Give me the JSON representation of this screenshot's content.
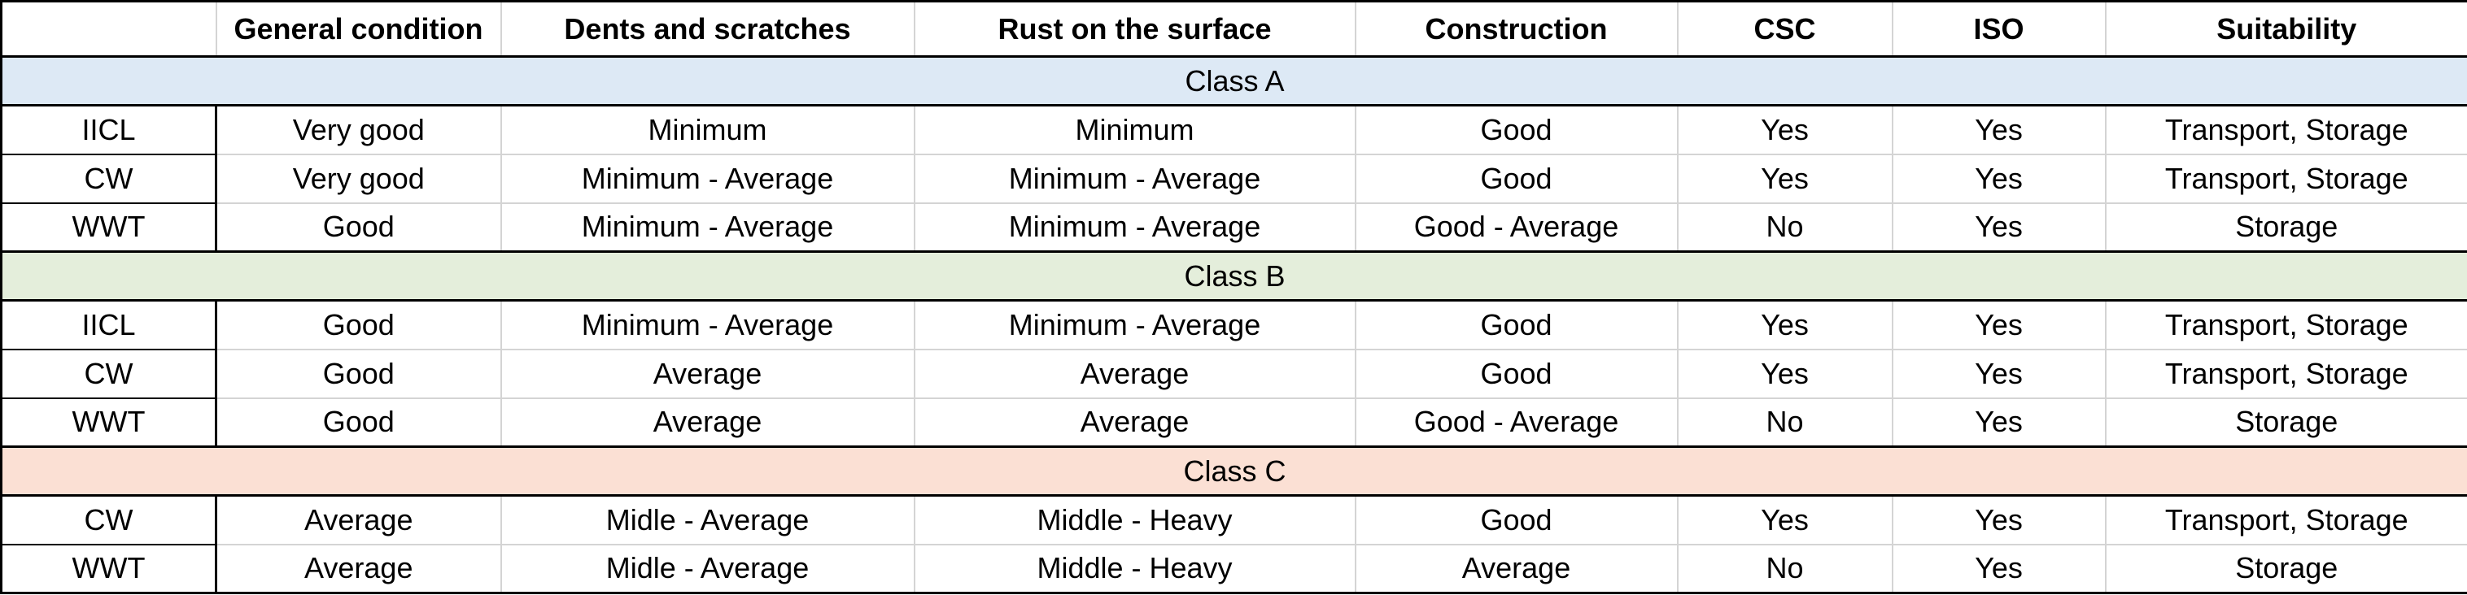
{
  "header": {
    "corner": "",
    "columns": [
      "General condition",
      "Dents and scratches",
      "Rust on the surface",
      "Construction",
      "CSC",
      "ISO",
      "Suitability"
    ]
  },
  "groups": [
    {
      "title": "Class A",
      "band_color": "#dde9f5",
      "rows": [
        {
          "label": "IICL",
          "cells": [
            "Very good",
            "Minimum",
            "Minimum",
            "Good",
            "Yes",
            "Yes",
            "Transport, Storage"
          ]
        },
        {
          "label": "CW",
          "cells": [
            "Very good",
            "Minimum - Average",
            "Minimum - Average",
            "Good",
            "Yes",
            "Yes",
            "Transport, Storage"
          ]
        },
        {
          "label": "WWT",
          "cells": [
            "Good",
            "Minimum - Average",
            "Minimum - Average",
            "Good - Average",
            "No",
            "Yes",
            "Storage"
          ]
        }
      ]
    },
    {
      "title": "Class B",
      "band_color": "#e4eedb",
      "rows": [
        {
          "label": "IICL",
          "cells": [
            "Good",
            "Minimum - Average",
            "Minimum - Average",
            "Good",
            "Yes",
            "Yes",
            "Transport, Storage"
          ]
        },
        {
          "label": "CW",
          "cells": [
            "Good",
            "Average",
            "Average",
            "Good",
            "Yes",
            "Yes",
            "Transport, Storage"
          ]
        },
        {
          "label": "WWT",
          "cells": [
            "Good",
            "Average",
            "Average",
            "Good - Average",
            "No",
            "Yes",
            "Storage"
          ]
        }
      ]
    },
    {
      "title": "Class C",
      "band_color": "#fbe0d4",
      "rows": [
        {
          "label": "CW",
          "cells": [
            "Average",
            "Midle - Average",
            "Middle - Heavy",
            "Good",
            "Yes",
            "Yes",
            "Transport, Storage"
          ]
        },
        {
          "label": "WWT",
          "cells": [
            "Average",
            "Midle - Average",
            "Middle - Heavy",
            "Average",
            "No",
            "Yes",
            "Storage"
          ]
        }
      ]
    }
  ]
}
